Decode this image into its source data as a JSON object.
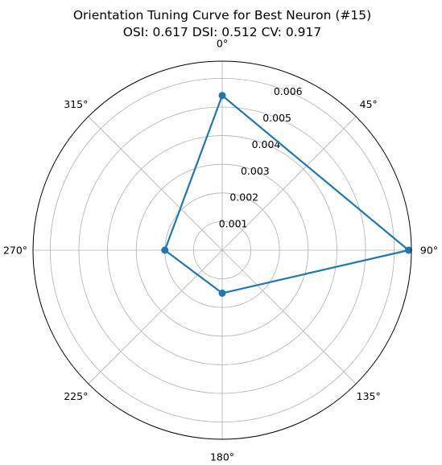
{
  "chart_data": {
    "type": "line",
    "projection": "polar",
    "title_line1": "Orientation Tuning Curve for Best Neuron (#15)",
    "title_line2": "OSI: 0.617 DSI: 0.512 CV: 0.917",
    "angle_ticks": [
      0,
      45,
      90,
      135,
      180,
      225,
      270,
      315
    ],
    "angle_tick_labels": [
      "0°",
      "45°",
      "90°",
      "135°",
      "180°",
      "225°",
      "270°",
      "315°"
    ],
    "angle_zero_location": "top",
    "angle_direction": "clockwise",
    "radial_ticks": [
      0.001,
      0.002,
      0.003,
      0.004,
      0.005,
      0.006
    ],
    "radial_tick_labels": [
      "0.001",
      "0.002",
      "0.003",
      "0.004",
      "0.005",
      "0.006"
    ],
    "rlim": [
      0,
      0.0066
    ],
    "grid": true,
    "series": [
      {
        "theta_deg": [
          0,
          90,
          180,
          270
        ],
        "r": [
          0.0054,
          0.0065,
          0.0015,
          0.002
        ],
        "color": "#1f77b4",
        "marker": "circle"
      }
    ]
  }
}
